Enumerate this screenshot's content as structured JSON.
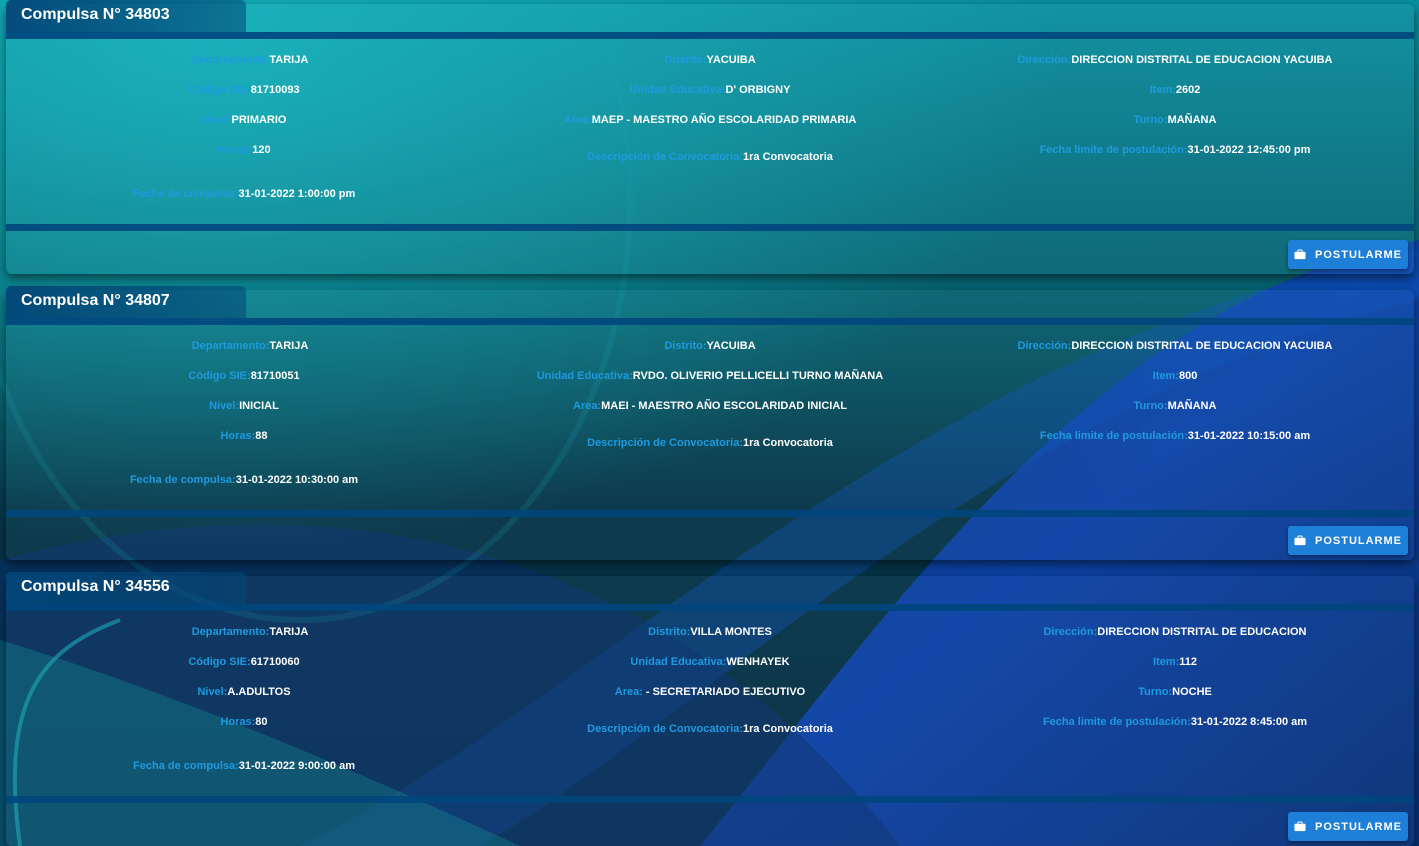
{
  "labels": {
    "departamento": "Departamento:",
    "distrito": "Distrito:",
    "direccion": "Dirección:",
    "codigo_sie": "Código SIE:",
    "unidad_educativa": "Unidad Educativa:",
    "item": "Item:",
    "nivel": "Nivel:",
    "area": "Area:",
    "turno": "Turno:",
    "horas": "Horas:",
    "descripcion": "Descripción de Convocatoria:",
    "fecha_limite": "Fecha limite de postulación:",
    "fecha_compulsa": "Fecha de compulsa:"
  },
  "button_label": "POSTULARME",
  "button_icon": "briefcase-icon",
  "colors": {
    "label": "#1e9be0",
    "value": "#ffffff",
    "button": "#1e7fd9",
    "bar": "#00467d"
  },
  "cards": [
    {
      "title": "Compulsa N° 34803",
      "departamento": "TARIJA",
      "distrito": "YACUIBA",
      "direccion": "DIRECCION DISTRITAL DE EDUCACION YACUIBA",
      "codigo_sie": "81710093",
      "unidad_educativa": "D' ORBIGNY",
      "item": "2602",
      "nivel": "PRIMARIO",
      "area": "MAEP - MAESTRO AÑO ESCOLARIDAD PRIMARIA",
      "turno": "MAÑANA",
      "horas": "120",
      "descripcion": "1ra Convocatoria",
      "fecha_limite": "31-01-2022 12:45:00 pm",
      "fecha_compulsa": "31-01-2022 1:00:00 pm"
    },
    {
      "title": "Compulsa N° 34807",
      "departamento": "TARIJA",
      "distrito": "YACUIBA",
      "direccion": "DIRECCION DISTRITAL DE EDUCACION YACUIBA",
      "codigo_sie": "81710051",
      "unidad_educativa": "RVDO. OLIVERIO PELLICELLI TURNO MAÑANA",
      "item": "800",
      "nivel": "INICIAL",
      "area": "MAEI - MAESTRO AÑO ESCOLARIDAD INICIAL",
      "turno": "MAÑANA",
      "horas": "88",
      "descripcion": "1ra Convocatoria",
      "fecha_limite": "31-01-2022 10:15:00 am",
      "fecha_compulsa": "31-01-2022 10:30:00 am"
    },
    {
      "title": "Compulsa N° 34556",
      "departamento": "TARIJA",
      "distrito": "VILLA MONTES",
      "direccion": "DIRECCION DISTRITAL DE EDUCACION",
      "codigo_sie": "61710060",
      "unidad_educativa": "WENHAYEK",
      "item": "112",
      "nivel": "A.ADULTOS",
      "area": " - SECRETARIADO EJECUTIVO",
      "turno": "NOCHE",
      "horas": "80",
      "descripcion": "1ra Convocatoria",
      "fecha_limite": "31-01-2022 8:45:00 am",
      "fecha_compulsa": "31-01-2022 9:00:00 am"
    }
  ]
}
